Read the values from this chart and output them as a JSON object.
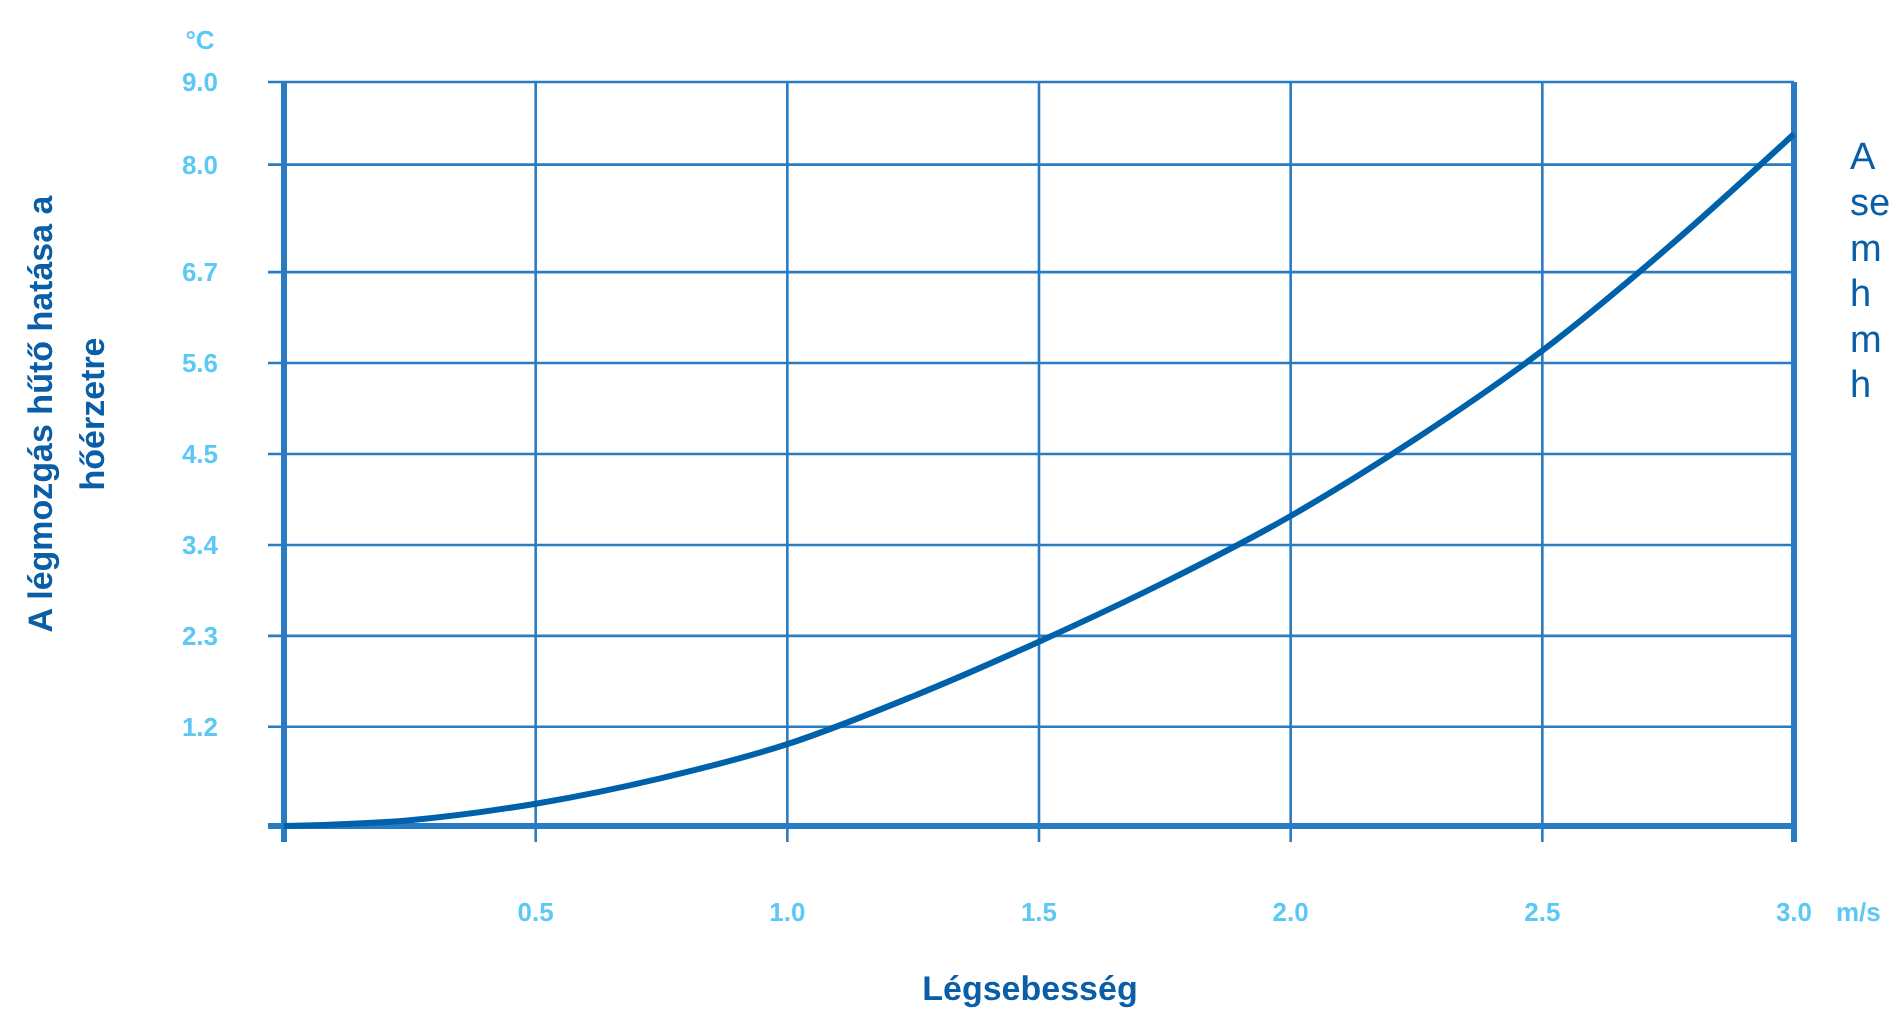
{
  "chart_data": {
    "type": "line",
    "xlabel": "Légsebesség",
    "ylabel": "A légmozgás hűtő hatása a hőérzetre",
    "x": [
      0,
      0.25,
      0.5,
      0.75,
      1.0,
      1.25,
      1.5,
      1.75,
      2.0,
      2.25,
      2.5,
      2.75,
      3.0
    ],
    "series": [
      {
        "color": "#0061ab",
        "values": [
          0,
          0.07,
          0.27,
          0.58,
          0.99,
          1.57,
          2.23,
          2.95,
          3.75,
          4.69,
          5.75,
          7.0,
          8.37
        ]
      }
    ],
    "xlim": [
      0,
      3
    ],
    "xticks": [
      {
        "value": 0,
        "label": null
      },
      0.5,
      {
        "value": 1,
        "label": "1.0"
      },
      1.5,
      {
        "value": 2,
        "label": "2.0"
      },
      2.5,
      {
        "value": 3,
        "label": "3.0"
      }
    ],
    "ylim": [
      0,
      9
    ],
    "yticks": [
      {
        "value": 0,
        "label": null
      },
      1.2,
      2.3,
      3.4,
      4.5,
      5.6,
      6.7,
      {
        "value": 8,
        "label": "8.0"
      },
      {
        "value": 9,
        "label": "9.0"
      }
    ],
    "grid": true,
    "marker": "none",
    "line_style": "solid",
    "annotations": [
      "°C",
      "m/s",
      "A\nse\nm\nh\nm\nh"
    ]
  }
}
